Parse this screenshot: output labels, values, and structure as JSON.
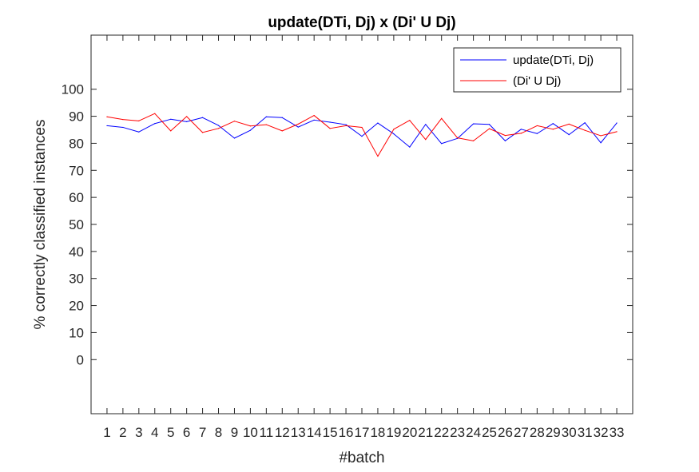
{
  "chart_data": {
    "type": "line",
    "title": "update(DTi, Dj) x (Di' U Dj)",
    "xlabel": "#batch",
    "ylabel": "% correctly classified instances",
    "x": [
      1,
      2,
      3,
      4,
      5,
      6,
      7,
      8,
      9,
      10,
      11,
      12,
      13,
      14,
      15,
      16,
      17,
      18,
      19,
      20,
      21,
      22,
      23,
      24,
      25,
      26,
      27,
      28,
      29,
      30,
      31,
      32,
      33
    ],
    "xlim": [
      0,
      34
    ],
    "ylim": [
      -20,
      120
    ],
    "yticks": [
      0,
      10,
      20,
      30,
      40,
      50,
      60,
      70,
      80,
      90,
      100
    ],
    "xticks": [
      "1",
      "2",
      "3",
      "4",
      "5",
      "6",
      "7",
      "8",
      "9",
      "10",
      "11",
      "12",
      "13",
      "14",
      "15",
      "16",
      "17",
      "18",
      "19",
      "20",
      "21",
      "22",
      "23",
      "24",
      "25",
      "26",
      "27",
      "28",
      "29",
      "30",
      "31",
      "32",
      "33"
    ],
    "grid": false,
    "legend_position": "top-right",
    "series": [
      {
        "name": "update(DTi, Dj)",
        "color": "#0000ff",
        "values": [
          86.5,
          85.9,
          84.2,
          87.3,
          88.9,
          88.0,
          89.5,
          86.6,
          81.9,
          84.8,
          89.8,
          89.5,
          86.0,
          88.6,
          87.8,
          86.9,
          82.6,
          87.5,
          83.5,
          78.6,
          87.0,
          79.9,
          81.8,
          87.2,
          87.0,
          80.9,
          85.2,
          83.6,
          87.3,
          83.2,
          87.6,
          80.2,
          87.5
        ]
      },
      {
        "name": "(Di' U Dj)",
        "color": "#ff0000",
        "values": [
          89.8,
          88.8,
          88.3,
          91.0,
          84.6,
          89.9,
          84.0,
          85.5,
          88.2,
          86.4,
          86.9,
          84.6,
          87.1,
          90.3,
          85.5,
          86.5,
          85.9,
          75.2,
          85.2,
          88.5,
          81.4,
          89.2,
          82.0,
          80.9,
          85.4,
          82.9,
          83.7,
          86.5,
          85.2,
          87.1,
          84.8,
          82.8,
          84.3
        ]
      }
    ]
  }
}
